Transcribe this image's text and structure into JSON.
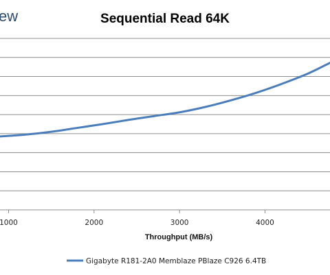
{
  "branding": {
    "logo_text": "ew",
    "logo_color": "#2b4c6f"
  },
  "chart_data": {
    "type": "line",
    "title": "Sequential Read 64K",
    "xlabel": "Throughput (MB/s)",
    "ylabel": "",
    "x_ticks": [
      1000,
      2000,
      3000,
      4000
    ],
    "x_tick_labels": [
      "1000",
      "2000",
      "3000",
      "4000"
    ],
    "xlim": [
      900,
      4760
    ],
    "ylim": [
      0,
      9
    ],
    "grid": true,
    "legend_position": "bottom",
    "series": [
      {
        "name": "Gigabyte R181-2A0 Memblaze PBlaze C926 6.4TB",
        "color": "#4a7ebb",
        "x": [
          900,
          1200,
          1500,
          1800,
          2100,
          2400,
          2700,
          3000,
          3300,
          3600,
          3900,
          4200,
          4500,
          4760
        ],
        "y": [
          3.85,
          3.95,
          4.1,
          4.3,
          4.5,
          4.72,
          4.92,
          5.12,
          5.4,
          5.75,
          6.15,
          6.62,
          7.15,
          7.72
        ]
      }
    ]
  }
}
